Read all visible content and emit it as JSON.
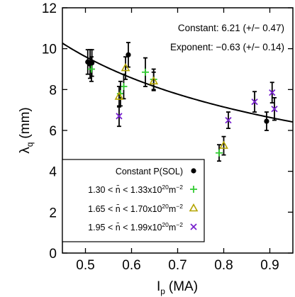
{
  "chart_data": {
    "type": "scatter",
    "xlabel": "I",
    "xlabel_sub": "p",
    "xlabel_unit": "(MA)",
    "ylabel": "λ",
    "ylabel_sub": "q",
    "ylabel_unit": "(mm)",
    "xlim": [
      0.45,
      0.95
    ],
    "ylim": [
      0,
      12
    ],
    "xticks": [
      0.5,
      0.6,
      0.7,
      0.8,
      0.9
    ],
    "xtick_labels": [
      "0.5",
      "0.6",
      "0.7",
      "0.8",
      "0.9"
    ],
    "yticks": [
      0,
      2,
      4,
      6,
      8,
      10,
      12
    ],
    "ytick_labels": [
      "0",
      "2",
      "4",
      "6",
      "8",
      "10",
      "12"
    ],
    "grid": false,
    "legend_position": "bottom-left",
    "annotations": {
      "constant": "Constant: 6.21 (+/− 0.47)",
      "exponent": "Exponent: −0.63 (+/− 0.14)"
    },
    "fit": {
      "form": "power-law",
      "constant": 6.21,
      "exponent": -0.63,
      "color": "#000000"
    },
    "series": [
      {
        "label": "Constant P(SOL)",
        "marker": "circle",
        "color": "#000000",
        "points": [
          {
            "x": 0.505,
            "y": 9.35,
            "err": 0.6
          },
          {
            "x": 0.51,
            "y": 9.25,
            "err": 0.7
          },
          {
            "x": 0.514,
            "y": 9.3,
            "err": 0.65
          },
          {
            "x": 0.593,
            "y": 9.7,
            "err": 0.6
          },
          {
            "x": 0.893,
            "y": 6.45,
            "err": 0.45
          }
        ]
      },
      {
        "label_prefix": "1.30 < n̄ < 1.33x10",
        "label_exp": "20",
        "label_unit": "m",
        "label_unit_exp": "−2",
        "marker": "plus",
        "color": "#33cc33",
        "points": [
          {
            "x": 0.513,
            "y": 9.0,
            "err": 0.6
          },
          {
            "x": 0.576,
            "y": 7.8,
            "err": 0.6
          },
          {
            "x": 0.583,
            "y": 8.15,
            "err": 0.6
          },
          {
            "x": 0.63,
            "y": 8.85,
            "err": 0.7
          },
          {
            "x": 0.648,
            "y": 8.5,
            "err": 0.5
          },
          {
            "x": 0.79,
            "y": 4.9,
            "err": 0.4
          }
        ]
      },
      {
        "label_prefix": "1.65 < n̄ < 1.70x10",
        "label_exp": "20",
        "label_unit": "m",
        "label_unit_exp": "−2",
        "marker": "triangle",
        "color": "#b3a300",
        "points": [
          {
            "x": 0.573,
            "y": 7.65,
            "err": 0.5
          },
          {
            "x": 0.587,
            "y": 9.05,
            "err": 0.55
          },
          {
            "x": 0.648,
            "y": 8.4,
            "err": 0.45
          },
          {
            "x": 0.8,
            "y": 5.25,
            "err": 0.45
          }
        ]
      },
      {
        "label_prefix": "1.95 < n̄ < 1.99x10",
        "label_exp": "20",
        "label_unit": "m",
        "label_unit_exp": "−2",
        "marker": "x",
        "color": "#7722cc",
        "points": [
          {
            "x": 0.573,
            "y": 6.7,
            "err": 0.5
          },
          {
            "x": 0.81,
            "y": 6.5,
            "err": 0.4
          },
          {
            "x": 0.867,
            "y": 7.4,
            "err": 0.5
          },
          {
            "x": 0.905,
            "y": 7.85,
            "err": 0.5
          },
          {
            "x": 0.91,
            "y": 7.05,
            "err": 0.55
          }
        ]
      }
    ]
  }
}
